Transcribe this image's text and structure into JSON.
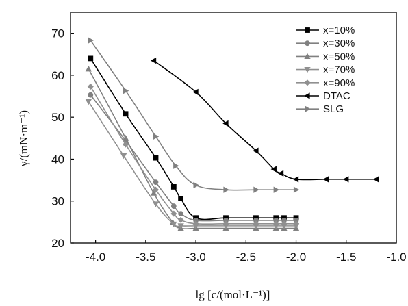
{
  "chart_data": {
    "type": "line",
    "xlabel": "lg [c/(mol·L⁻¹)]",
    "ylabel": "γ/(mN·m⁻¹)",
    "xlim": [
      -4.25,
      -1.0
    ],
    "ylim": [
      20,
      75
    ],
    "x_ticks": [
      "-4.0",
      "-3.5",
      "-3.0",
      "-2.5",
      "-2.0",
      "-1.5",
      "-1.0"
    ],
    "y_ticks": [
      "20",
      "30",
      "40",
      "50",
      "60",
      "70"
    ],
    "grid": false,
    "legend_position": "top-right",
    "series": [
      {
        "name": "x=10%",
        "color": "#000000",
        "marker": "square",
        "x": [
          -4.05,
          -3.7,
          -3.4,
          -3.22,
          -3.15,
          -3.0,
          -2.7,
          -2.4,
          -2.2,
          -2.12,
          -2.0
        ],
        "y": [
          64.0,
          50.8,
          40.3,
          33.4,
          30.6,
          26.0,
          26.0,
          26.0,
          26.0,
          26.0,
          26.0
        ]
      },
      {
        "name": "x=30%",
        "color": "#808080",
        "marker": "circle",
        "x": [
          -4.05,
          -3.7,
          -3.4,
          -3.22,
          -3.15,
          -3.0,
          -2.7,
          -2.4,
          -2.2,
          -2.12,
          -2.0
        ],
        "y": [
          55.3,
          44.4,
          34.5,
          28.8,
          27.0,
          25.4,
          25.4,
          25.4,
          25.4,
          25.4,
          25.4
        ]
      },
      {
        "name": "x=50%",
        "color": "#808080",
        "marker": "triangle-up",
        "x": [
          -4.07,
          -3.7,
          -3.42,
          -3.23,
          -3.15,
          -3.0,
          -2.7,
          -2.4,
          -2.2,
          -2.12,
          -2.0
        ],
        "y": [
          61.5,
          45.0,
          31.9,
          24.9,
          23.5,
          23.5,
          23.5,
          23.5,
          23.5,
          23.5,
          23.5
        ]
      },
      {
        "name": "x=70%",
        "color": "#909090",
        "marker": "triangle-down",
        "x": [
          -4.07,
          -3.72,
          -3.4,
          -3.22,
          -3.15,
          -3.0,
          -2.7,
          -2.4,
          -2.2,
          -2.12,
          -2.0
        ],
        "y": [
          53.7,
          40.8,
          29.3,
          24.5,
          24.1,
          24.1,
          24.1,
          24.1,
          24.1,
          24.1,
          24.1
        ]
      },
      {
        "name": "x=90%",
        "color": "#909090",
        "marker": "diamond",
        "x": [
          -4.05,
          -3.7,
          -3.4,
          -3.22,
          -3.15,
          -3.0,
          -2.7,
          -2.4,
          -2.2,
          -2.12,
          -2.0
        ],
        "y": [
          57.3,
          43.5,
          32.7,
          27.0,
          25.5,
          24.6,
          24.6,
          24.6,
          24.6,
          24.6,
          24.6
        ]
      },
      {
        "name": "DTAC",
        "color": "#000000",
        "marker": "triangle-left",
        "x": [
          -3.42,
          -3.0,
          -2.7,
          -2.4,
          -2.22,
          -2.15,
          -2.0,
          -1.7,
          -1.5,
          -1.2
        ],
        "y": [
          63.5,
          56.0,
          48.5,
          42.0,
          37.6,
          36.6,
          35.2,
          35.2,
          35.2,
          35.2
        ]
      },
      {
        "name": "SLG",
        "color": "#808080",
        "marker": "triangle-right",
        "x": [
          -4.05,
          -3.7,
          -3.4,
          -3.2,
          -3.0,
          -2.7,
          -2.4,
          -2.2,
          -2.0
        ],
        "y": [
          68.3,
          56.3,
          45.4,
          38.4,
          33.8,
          32.7,
          32.7,
          32.7,
          32.7
        ]
      }
    ]
  }
}
